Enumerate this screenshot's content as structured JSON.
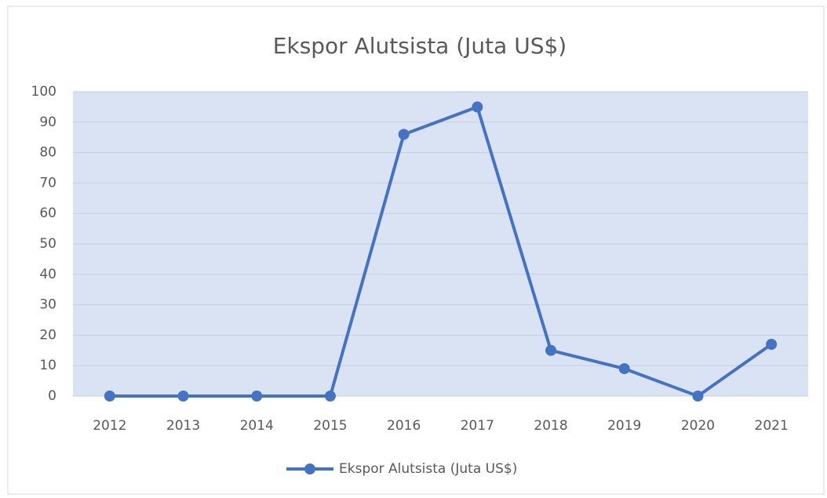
{
  "chart_data": {
    "type": "line",
    "title": "Ekspor Alutsista (Juta US$)",
    "categories": [
      "2012",
      "2013",
      "2014",
      "2015",
      "2016",
      "2017",
      "2018",
      "2019",
      "2020",
      "2021"
    ],
    "series": [
      {
        "name": "Ekspor Alutsista (Juta US$)",
        "color": "#4472c4",
        "values": [
          0,
          0,
          0,
          0,
          86,
          95,
          15,
          9,
          0,
          17
        ]
      }
    ],
    "ylim": [
      0,
      100
    ],
    "yticks": [
      0,
      10,
      20,
      30,
      40,
      50,
      60,
      70,
      80,
      90,
      100
    ],
    "grid": true,
    "legend": "bottom"
  }
}
